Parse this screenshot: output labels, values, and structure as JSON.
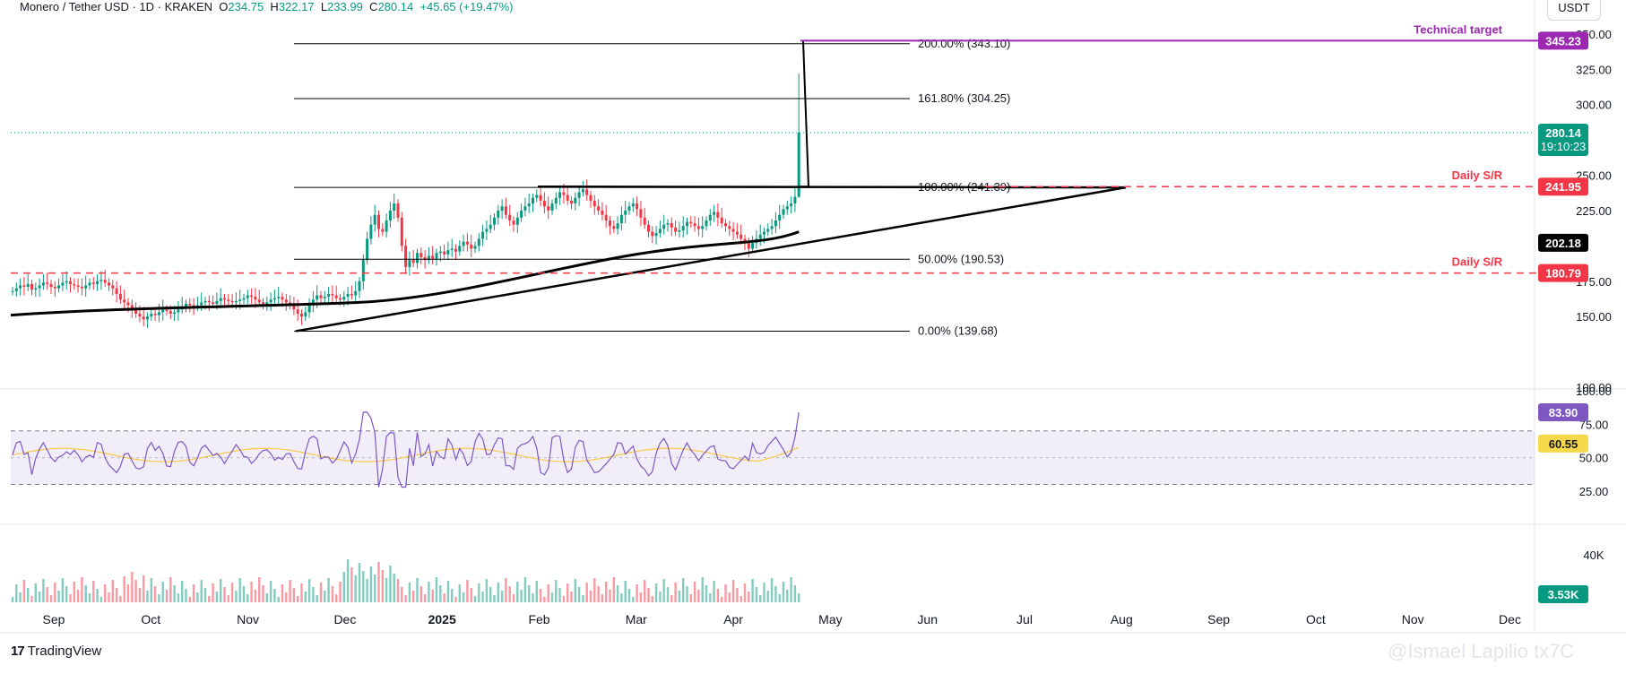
{
  "header": {
    "symbol": "Monero / Tether USD · 1D · KRAKEN",
    "o_label": "O",
    "o_value": "234.75",
    "h_label": "H",
    "h_value": "322.17",
    "l_label": "L",
    "l_value": "233.99",
    "c_label": "C",
    "c_value": "280.14",
    "change": "+45.65 (+19.47%)"
  },
  "unit": "USDT",
  "branding": {
    "logo_text": "TradingView",
    "watermark": "@Ismael Lapilio tx7C"
  },
  "colors": {
    "up": "#089981",
    "down": "#f23645",
    "fib": "#000000",
    "target": "#9c27b0",
    "rsi": "#7e57c2",
    "rsi_ma": "#f7c948",
    "sr": "#f23645"
  },
  "chart_data": {
    "type": "candlestick",
    "x_axis": {
      "tick_labels": [
        "Sep",
        "Oct",
        "Nov",
        "Dec",
        "2025",
        "Feb",
        "Mar",
        "Apr",
        "May",
        "Jun",
        "Jul",
        "Aug",
        "Sep",
        "Oct",
        "Nov",
        "Dec"
      ]
    },
    "price_axis": {
      "ticks": [
        100,
        150,
        175,
        200,
        225,
        250,
        300,
        325,
        350
      ],
      "tick_labels": [
        "100.00",
        "150.00",
        "175.00",
        "",
        "225.00",
        "250.00",
        "300.00",
        "325.00",
        "350.00"
      ],
      "range": [
        100,
        355
      ]
    },
    "fib_levels": [
      {
        "label": "200.00% (343.10)",
        "value": 343.1
      },
      {
        "label": "161.80% (304.25)",
        "value": 304.25
      },
      {
        "label": "100.00% (241.39)",
        "value": 241.39
      },
      {
        "label": "50.00% (190.53)",
        "value": 190.53
      },
      {
        "label": "0.00% (139.68)",
        "value": 139.68
      }
    ],
    "technical_target": {
      "label": "Technical target",
      "value": 345.23,
      "value_label": "345.23"
    },
    "support_resistance": [
      {
        "label": "Daily S/R",
        "value": 241.95,
        "value_label": "241.95"
      },
      {
        "label": "Daily S/R",
        "value": 180.79,
        "value_label": "180.79"
      }
    ],
    "last_price": {
      "value": 280.14,
      "value_label": "280.14",
      "countdown": "19:10:23"
    },
    "moving_average_200": {
      "value": 202.18,
      "value_label": "202.18"
    },
    "closes": [
      168,
      170,
      172,
      171,
      173,
      169,
      170,
      172,
      174,
      173,
      171,
      170,
      172,
      174,
      175,
      173,
      172,
      171,
      170,
      172,
      174,
      173,
      175,
      176,
      174,
      172,
      170,
      166,
      162,
      160,
      158,
      155,
      152,
      150,
      148,
      150,
      152,
      151,
      153,
      155,
      154,
      152,
      153,
      155,
      157,
      159,
      158,
      157,
      158,
      160,
      161,
      160,
      159,
      161,
      163,
      162,
      161,
      160,
      161,
      162,
      163,
      165,
      164,
      162,
      160,
      159,
      160,
      162,
      163,
      164,
      162,
      160,
      158,
      155,
      152,
      150,
      153,
      158,
      162,
      165,
      163,
      164,
      166,
      165,
      163,
      162,
      164,
      166,
      165,
      168,
      175,
      190,
      205,
      215,
      222,
      212,
      210,
      218,
      225,
      230,
      220,
      200,
      185,
      190,
      188,
      195,
      192,
      190,
      193,
      191,
      195,
      196,
      194,
      197,
      198,
      196,
      200,
      203,
      201,
      198,
      200,
      205,
      210,
      212,
      215,
      220,
      225,
      228,
      222,
      218,
      215,
      220,
      225,
      228,
      230,
      234,
      236,
      232,
      228,
      225,
      230,
      234,
      238,
      236,
      232,
      230,
      234,
      238,
      240,
      236,
      232,
      228,
      225,
      222,
      218,
      214,
      212,
      216,
      222,
      225,
      228,
      230,
      226,
      220,
      215,
      210,
      207,
      209,
      212,
      215,
      216,
      213,
      210,
      211,
      214,
      217,
      216,
      214,
      212,
      214,
      218,
      222,
      224,
      220,
      216,
      214,
      212,
      210,
      208,
      205,
      202,
      198,
      202,
      205,
      208,
      210,
      212,
      214,
      218,
      222,
      226,
      228,
      230,
      234.75,
      280.14
    ],
    "candles_start_month_index": 0,
    "rsi": {
      "overbought": 70,
      "oversold": 30,
      "last_value_label": "83.90",
      "ma_value_label": "60.55",
      "axis_ticks": [
        25,
        50,
        75,
        100
      ],
      "axis_tick_labels": [
        "25.00",
        "50.00",
        "75.00",
        "100.00"
      ]
    },
    "volume": {
      "axis_tick_label": "40K",
      "last_value_label": "3.53K"
    }
  }
}
